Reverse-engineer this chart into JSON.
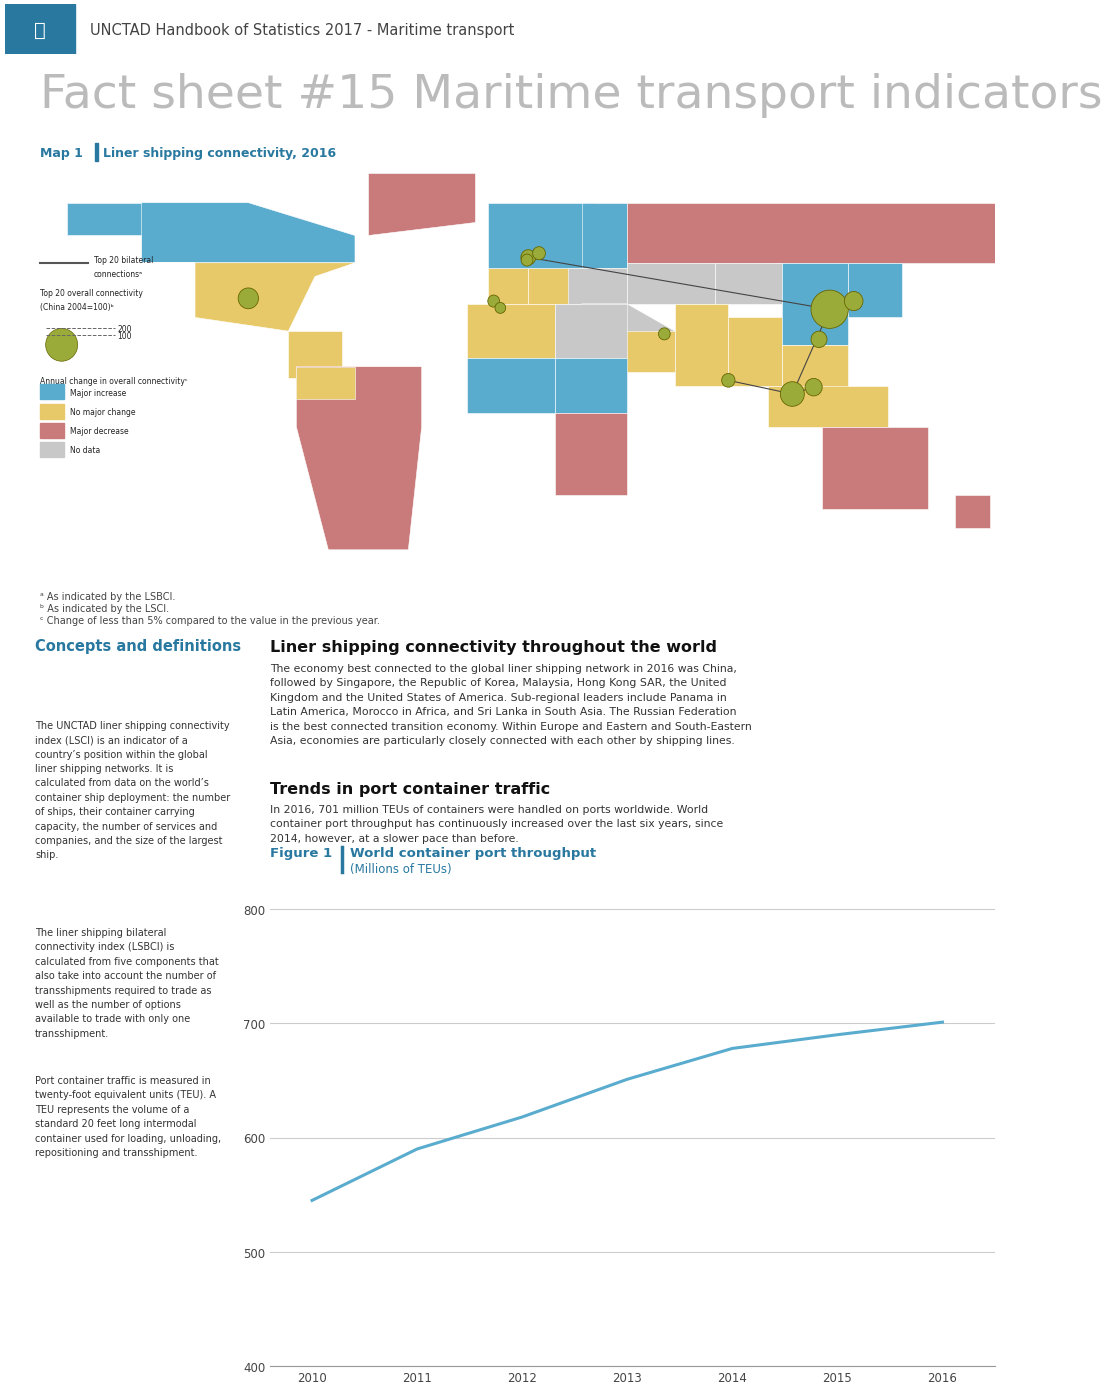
{
  "header_bg": "#e0e0e0",
  "header_blue": "#2878a0",
  "header_text": "UNCTAD Handbook of Statistics 2017 - Maritime transport",
  "title_text": "Fact sheet #15 Maritime transport indicators",
  "title_color": "#bbbbbb",
  "map_label": "Map 1",
  "map_title": "Liner shipping connectivity, 2016",
  "map_label_color": "#2878a0",
  "legend_colors": {
    "Major increase": "#5aaccf",
    "No major change": "#e8c96a",
    "Major decrease": "#c97a7a",
    "No data": "#c8c8c8"
  },
  "footnote_a": "ᵃ As indicated by the LSBCI.",
  "footnote_b": "ᵇ As indicated by the LSCI.",
  "footnote_c": "ᶜ Change of less than 5% compared to the value in the previous year.",
  "section_left_title": "Concepts and definitions",
  "section_left_title_color": "#2878a0",
  "section_left_text1": "The UNCTAD liner shipping connectivity index (LSCI) is an indicator of a country’s position within the global liner shipping networks. It is calculated from data on the world’s container ship deployment: the number of ships, their container carrying capacity, the number of services and companies, and the size of the largest ship.",
  "section_left_text2": "The liner shipping bilateral connectivity index (LSBCI) is calculated from five components that also take into account the number of transshipments required to trade as well as the number of options available to trade with only one transshipment.",
  "section_left_text3": "Port container traffic is measured in twenty-foot equivalent units (TEU). A TEU represents the volume of a standard 20 feet long intermodal container used for loading, unloading, repositioning and transshipment.",
  "section_right_title": "Liner shipping connectivity throughout the world",
  "section_right_text": "The economy best connected to the global liner shipping network in 2016 was China, followed by Singapore, the Republic of Korea, Malaysia, Hong Kong SAR, the United Kingdom and the United States of America. Sub-regional leaders include Panama in Latin America, Morocco in Africa, and Sri Lanka in South Asia. The Russian Federation is the best connected transition economy. Within Europe and Eastern and South-Eastern Asia, economies are particularly closely connected with each other by shipping lines.",
  "section_right_title2": "Trends in port container traffic",
  "section_right_text2": "In 2016, 701 million TEUs of containers were handled on ports worldwide. World container port throughput has continuously increased over the last six years, since 2014, however, at a slower pace than before.",
  "figure_label": "Figure 1",
  "figure_title": "World container port throughput",
  "figure_subtitle": "(Millions of TEUs)",
  "figure_label_color": "#2878a0",
  "chart_years": [
    2010,
    2011,
    2012,
    2013,
    2014,
    2015,
    2016
  ],
  "chart_values": [
    545,
    590,
    618,
    651,
    678,
    690,
    701
  ],
  "chart_line_color": "#5aaccf",
  "chart_ylim": [
    400,
    820
  ],
  "chart_yticks": [
    400,
    500,
    600,
    700,
    800
  ],
  "bg_color": "#ffffff",
  "divider_color": "#2878a0",
  "ocean_color": "#ddeef5",
  "bubble_color": "#9aab3a",
  "bubble_edge": "#666600"
}
